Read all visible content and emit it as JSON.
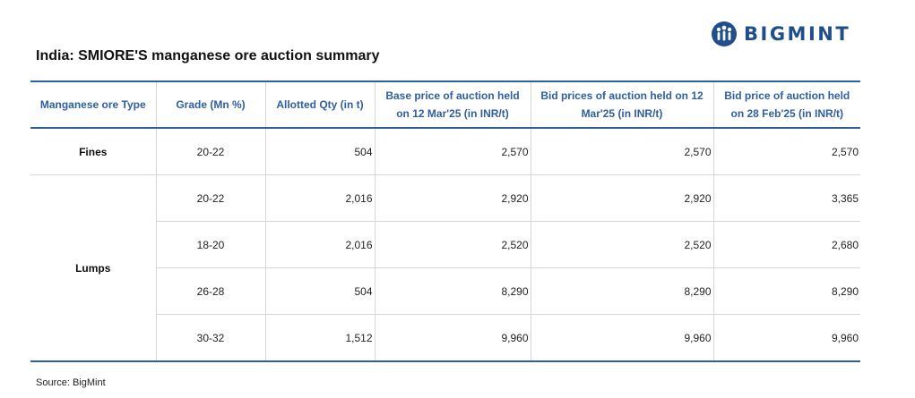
{
  "brand": {
    "name": "BIGMINT",
    "logo_icon": "bigmint-figures-icon",
    "color": "#1f4e8c"
  },
  "title": "India:  SMIORE'S manganese ore auction summary",
  "colors": {
    "header_text": "#2e5fa3",
    "rule": "#2e5fa3",
    "cell_border": "#d6d6d6"
  },
  "table": {
    "headers": [
      "Manganese ore Type",
      "Grade (Mn %)",
      "Allotted Qty (in t)",
      "Base price of auction held on 12 Mar'25 (in INR/t)",
      "Bid prices of auction held on 12 Mar'25 (in INR/t)",
      "Bid price of auction held on 28 Feb'25 (in INR/t)"
    ],
    "groups": [
      {
        "type": "Fines",
        "rows": [
          [
            "20-22",
            "504",
            "2,570",
            "2,570",
            "2,570"
          ]
        ]
      },
      {
        "type": "Lumps",
        "rows": [
          [
            "20-22",
            "2,016",
            "2,920",
            "2,920",
            "3,365"
          ],
          [
            "18-20",
            "2,016",
            "2,520",
            "2,520",
            "2,680"
          ],
          [
            "26-28",
            "504",
            "8,290",
            "8,290",
            "8,290"
          ],
          [
            "30-32",
            "1,512",
            "9,960",
            "9,960",
            "9,960"
          ]
        ]
      }
    ]
  },
  "source": "Source: BigMint"
}
